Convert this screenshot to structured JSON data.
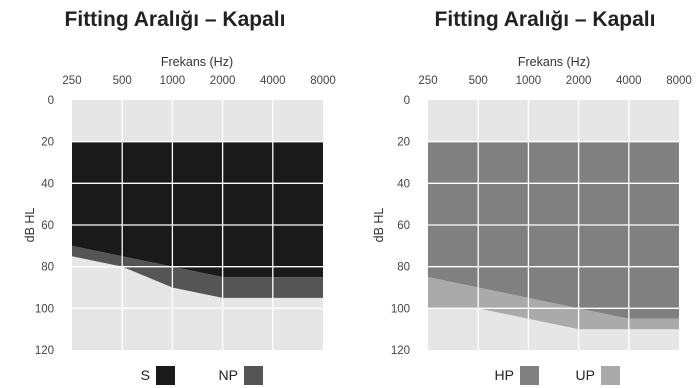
{
  "chart_data": [
    {
      "type": "area",
      "title": "Fitting Aralığı – Kapalı",
      "xlabel": "Frekans (Hz)",
      "ylabel": "dB HL",
      "x_ticks": [
        "250",
        "500",
        "1000",
        "2000",
        "4000",
        "8000"
      ],
      "y_ticks": [
        "0",
        "20",
        "40",
        "60",
        "80",
        "100",
        "120"
      ],
      "x_scale": "log",
      "y_inverted": true,
      "ylim": [
        0,
        120
      ],
      "grid": true,
      "legend_position": "bottom",
      "series": [
        {
          "name": "S",
          "color": "#1a1a1a",
          "top": [
            20,
            20,
            20,
            20,
            20,
            20
          ],
          "bottom": [
            70,
            75,
            80,
            85,
            85,
            85
          ]
        },
        {
          "name": "NP",
          "color": "#555555",
          "top": [
            70,
            75,
            80,
            85,
            85,
            85
          ],
          "bottom": [
            75,
            80,
            90,
            95,
            95,
            95
          ]
        }
      ]
    },
    {
      "type": "area",
      "title": "Fitting Aralığı – Kapalı",
      "xlabel": "Frekans (Hz)",
      "ylabel": "dB HL",
      "x_ticks": [
        "250",
        "500",
        "1000",
        "2000",
        "4000",
        "8000"
      ],
      "y_ticks": [
        "0",
        "20",
        "40",
        "60",
        "80",
        "100",
        "120"
      ],
      "x_scale": "log",
      "y_inverted": true,
      "ylim": [
        0,
        120
      ],
      "grid": true,
      "legend_position": "bottom",
      "series": [
        {
          "name": "HP",
          "color": "#808080",
          "top": [
            20,
            20,
            20,
            20,
            20,
            20
          ],
          "bottom": [
            85,
            90,
            95,
            100,
            105,
            105
          ]
        },
        {
          "name": "UP",
          "color": "#aaaaaa",
          "top": [
            85,
            90,
            95,
            100,
            105,
            105
          ],
          "bottom": [
            100,
            100,
            105,
            110,
            110,
            110
          ]
        }
      ]
    }
  ]
}
